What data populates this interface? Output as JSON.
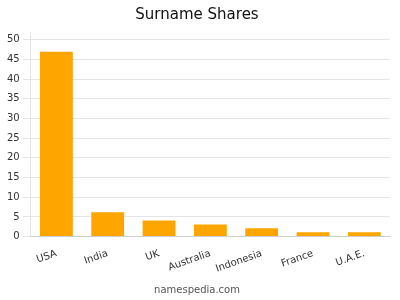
{
  "chart_data": {
    "type": "bar",
    "title": "Surname Shares",
    "categories": [
      "USA",
      "India",
      "UK",
      "Australia",
      "Indonesia",
      "France",
      "U.A.E."
    ],
    "values": [
      47.0,
      6.2,
      4.1,
      3.1,
      2.1,
      1.1,
      1.1
    ],
    "color": "#FFA500",
    "ylim": [
      0,
      52
    ],
    "yticks": [
      0,
      5,
      10,
      15,
      20,
      25,
      30,
      35,
      40,
      45,
      50
    ],
    "grid": true,
    "annotations": [
      "namespedia.com"
    ]
  }
}
